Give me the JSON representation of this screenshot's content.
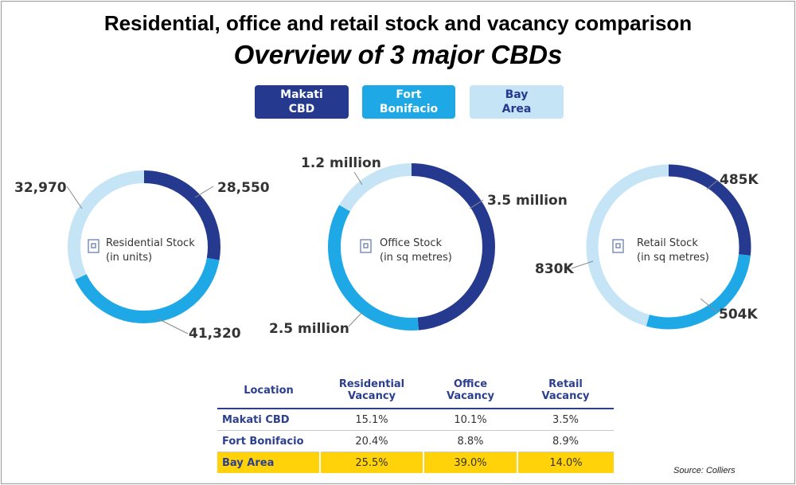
{
  "title": "Residential, office and retail stock and vacancy comparison",
  "subtitle": "Overview of 3 major CBDs",
  "legend": [
    {
      "label": "Makati\nCBD",
      "color": "#253a8e"
    },
    {
      "label": "Fort\nBonifacio",
      "color": "#1ea9e6"
    },
    {
      "label": "Bay\nArea",
      "color": "#c5e4f5"
    }
  ],
  "chart_data": [
    {
      "type": "pie",
      "donut": true,
      "center_label": [
        "Residential Stock",
        "(in units)"
      ],
      "icon": "building-icon",
      "categories": [
        "Makati CBD",
        "Fort Bonifacio",
        "Bay Area"
      ],
      "values": [
        28550,
        41320,
        32970
      ],
      "data_labels": [
        "28,550",
        "41,320",
        "32,970"
      ]
    },
    {
      "type": "pie",
      "donut": true,
      "center_label": [
        "Office Stock",
        "(in sq metres)"
      ],
      "icon": "office-tower-icon",
      "categories": [
        "Makati CBD",
        "Fort Bonifacio",
        "Bay Area"
      ],
      "values": [
        3500000,
        2500000,
        1200000
      ],
      "data_labels": [
        "3.5 million",
        "2.5 million",
        "1.2 million"
      ]
    },
    {
      "type": "pie",
      "donut": true,
      "center_label": [
        "Retail Stock",
        "(in sq metres)"
      ],
      "icon": "store-icon",
      "categories": [
        "Makati CBD",
        "Fort Bonifacio",
        "Bay Area"
      ],
      "values": [
        485000,
        504000,
        830000
      ],
      "data_labels": [
        "485K",
        "504K",
        "830K"
      ]
    },
    {
      "type": "table",
      "headers": [
        "Location",
        "Residential\nVacancy",
        "Office\nVacancy",
        "Retail\nVacancy"
      ],
      "rows": [
        [
          "Makati CBD",
          "15.1%",
          "10.1%",
          "3.5%"
        ],
        [
          "Fort Bonifacio",
          "20.4%",
          "8.8%",
          "8.9%"
        ],
        [
          "Bay Area",
          "25.5%",
          "39.0%",
          "14.0%"
        ]
      ],
      "highlight_row": "Bay Area",
      "highlight_color": "#ffd20a"
    }
  ],
  "source": "Source: Colliers"
}
